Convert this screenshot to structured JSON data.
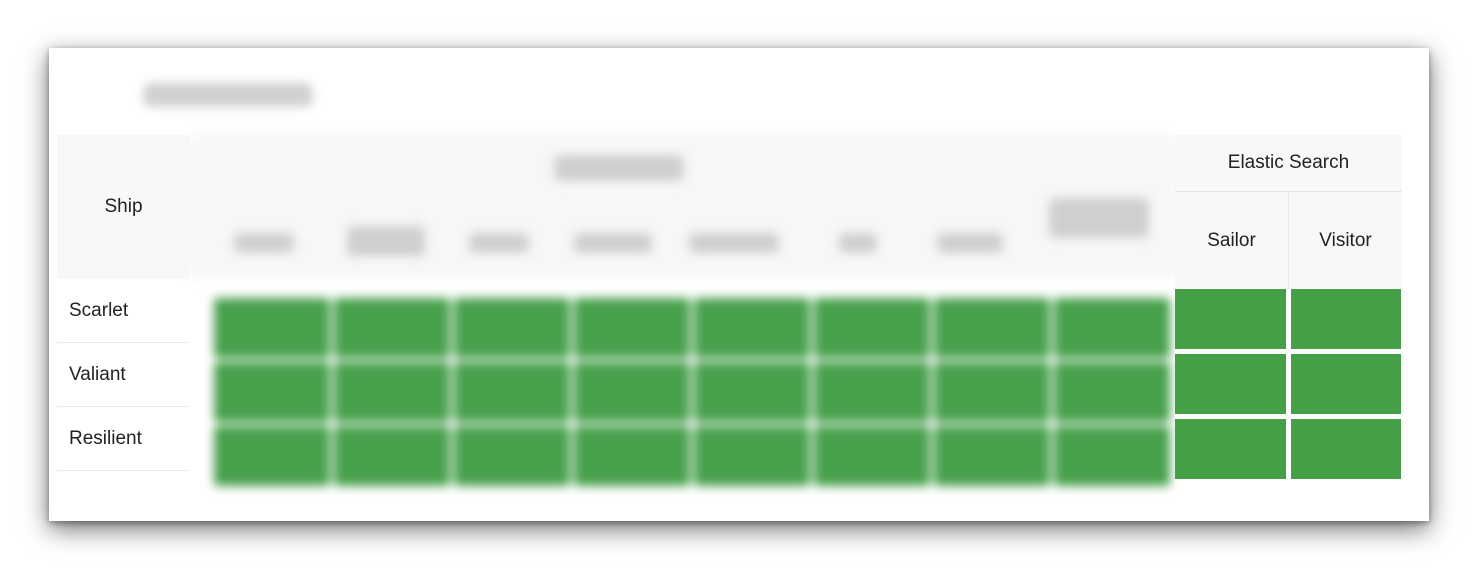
{
  "table": {
    "ship_header": "Ship",
    "rows": [
      "Scarlet",
      "Valiant",
      "Resilient"
    ],
    "elastic_search": {
      "title": "Elastic Search",
      "columns": [
        "Sailor",
        "Visitor"
      ]
    }
  },
  "colors": {
    "status_green": "#43a047",
    "header_bg": "#f8f8f8"
  }
}
